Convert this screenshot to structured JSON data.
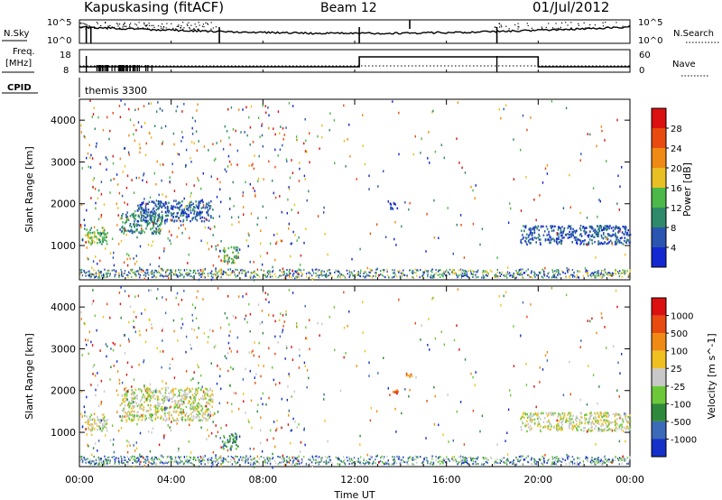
{
  "header": {
    "station": "Kapuskasing (fitACF)",
    "beam": "Beam 12",
    "date": "01/Jul/2012"
  },
  "top_panels": {
    "nsky": {
      "label": "N.Sky",
      "ticks": [
        "10^5",
        "10^0"
      ]
    },
    "nsearch": {
      "label": "N.Search",
      "ticks": [
        "10^5",
        "10^0"
      ]
    },
    "freq": {
      "label_line1": "Freq.",
      "label_line2": "[MHz]",
      "ticks": [
        "18",
        "8"
      ]
    },
    "nave": {
      "label": "Nave",
      "ticks": [
        "60",
        "0"
      ]
    },
    "cpid": {
      "label": "CPID",
      "value": "themis 3300"
    }
  },
  "x_axis": {
    "label": "Time UT",
    "range_hours": [
      0,
      24
    ],
    "ticks": [
      {
        "h": 0,
        "label": "00:00"
      },
      {
        "h": 4,
        "label": "04:00"
      },
      {
        "h": 8,
        "label": "08:00"
      },
      {
        "h": 12,
        "label": "12:00"
      },
      {
        "h": 16,
        "label": "16:00"
      },
      {
        "h": 20,
        "label": "20:00"
      },
      {
        "h": 24,
        "label": "00:00"
      }
    ]
  },
  "chart_data": [
    {
      "type": "heatmap",
      "quantity": "power",
      "ylabel": "Slant Range [km]",
      "ylim": [
        180,
        4500
      ],
      "yticks": [
        1000,
        2000,
        3000,
        4000
      ],
      "colorbar": {
        "label": "Power [dB]",
        "ticks": [
          "4",
          "8",
          "12",
          "16",
          "20",
          "24",
          "28"
        ],
        "colors": [
          "#1428d2",
          "#2a55b0",
          "#2e8a6a",
          "#4cb848",
          "#e8c024",
          "#f08a14",
          "#e84a10",
          "#dc1010"
        ]
      },
      "features": [
        {
          "t0": 0.1,
          "t1": 1.2,
          "r0": 1050,
          "r1": 1450,
          "level": 3
        },
        {
          "t0": 1.8,
          "t1": 3.6,
          "r0": 1300,
          "r1": 1800,
          "level": 2
        },
        {
          "t0": 2.5,
          "t1": 5.8,
          "r0": 1600,
          "r1": 2100,
          "level": 1
        },
        {
          "t0": 6.2,
          "t1": 6.9,
          "r0": 600,
          "r1": 1000,
          "level": 3
        },
        {
          "t0": 13.5,
          "t1": 13.9,
          "r0": 1900,
          "r1": 2050,
          "level": 0
        },
        {
          "t0": 19.2,
          "t1": 24,
          "r0": 1050,
          "r1": 1500,
          "level": 1
        }
      ]
    },
    {
      "type": "heatmap",
      "quantity": "velocity",
      "ylabel": "Slant Range [km]",
      "ylim": [
        180,
        4500
      ],
      "yticks": [
        1000,
        2000,
        3000,
        4000
      ],
      "colorbar": {
        "label": "Velocity [m s^-1]",
        "ticks": [
          "1000",
          "500",
          "100",
          "25",
          "-25",
          "-100",
          "-500",
          "-1000"
        ],
        "colors": [
          "#1430c8",
          "#3a6ab8",
          "#2e8a3a",
          "#6cc838",
          "#c8c8c8",
          "#f0c020",
          "#f08a14",
          "#e84a10",
          "#dc1010"
        ]
      },
      "features": [
        {
          "t0": 0.1,
          "t1": 1.2,
          "r0": 1050,
          "r1": 1450,
          "level": 4
        },
        {
          "t0": 1.8,
          "t1": 5.8,
          "r0": 1300,
          "r1": 2100,
          "level": 4
        },
        {
          "t0": 6.2,
          "t1": 6.9,
          "r0": 600,
          "r1": 1000,
          "level": 2
        },
        {
          "t0": 13.5,
          "t1": 13.9,
          "r0": 1900,
          "r1": 2050,
          "level": 7
        },
        {
          "t0": 14.2,
          "t1": 14.5,
          "r0": 2350,
          "r1": 2500,
          "level": 6
        },
        {
          "t0": 19.2,
          "t1": 24,
          "r0": 1050,
          "r1": 1500,
          "level": 4
        }
      ]
    }
  ]
}
